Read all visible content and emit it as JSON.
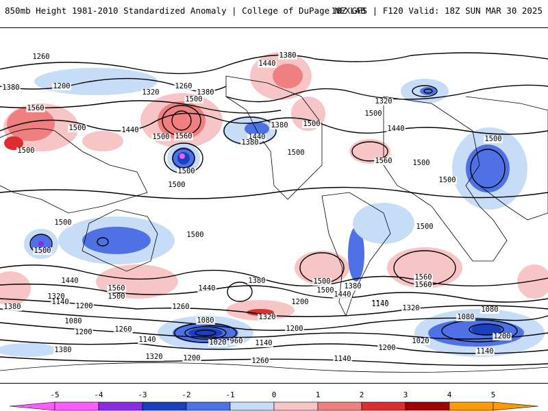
{
  "header": {
    "left_title": "850mb Height 1981-2010 Standardized Anomaly | College of DuPage NEXLAB",
    "right_title": "18Z GFS | F120 Valid: 18Z SUN MAR 30 2025"
  },
  "contour_labels": [
    "1260",
    "1380",
    "1440",
    "1380",
    "1200",
    "1260",
    "1380",
    "1320",
    "1500",
    "1560",
    "1500",
    "1440",
    "1500",
    "1440",
    "1560",
    "1500",
    "1380",
    "1500",
    "1320",
    "1380",
    "1500",
    "1560",
    "1500",
    "1500",
    "1500",
    "1440",
    "1500",
    "1500",
    "1500",
    "1500",
    "1500",
    "1500",
    "1500",
    "1440",
    "1380",
    "1560",
    "1440",
    "1500",
    "1560",
    "1500",
    "1500",
    "1440",
    "1380",
    "1560",
    "1260",
    "1320",
    "1200",
    "1380",
    "1320",
    "1260",
    "1140",
    "1200",
    "1080",
    "1200",
    "1260",
    "1080",
    "1140",
    "1020",
    "960",
    "1140",
    "1200",
    "1320",
    "1380",
    "1320",
    "1200",
    "1260",
    "1140",
    "1200",
    "1140",
    "1080",
    "1080",
    "1020",
    "1200",
    "1140"
  ],
  "colorbar": {
    "ticks": [
      "-5",
      "-4",
      "-3",
      "-2",
      "-1",
      "0",
      "1",
      "2",
      "3",
      "4",
      "5"
    ],
    "colors": [
      "#ff5bff",
      "#8a2be2",
      "#1b3fbf",
      "#4e72e6",
      "#c6dcf7",
      "#ffffff",
      "#f7c5c5",
      "#f08080",
      "#dc2e2e",
      "#a50000",
      "#ff9900"
    ]
  }
}
